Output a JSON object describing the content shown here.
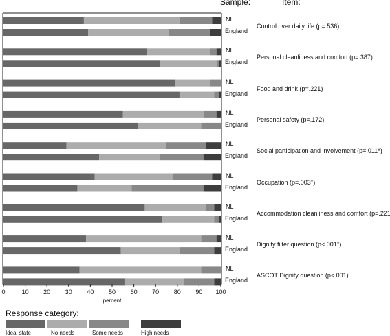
{
  "chart_data": {
    "type": "bar",
    "orientation": "horizontal",
    "stacked": true,
    "header_sample": "Sample:",
    "header_item": "Item:",
    "xlabel": "percent",
    "xlim": [
      0,
      100
    ],
    "xticks": [
      "0",
      "10",
      "20",
      "30",
      "40",
      "50",
      "60",
      "70",
      "80",
      "90",
      "100"
    ],
    "legend_title": "Response category:",
    "categories_legend": [
      "Ideal state",
      "No needs",
      "Some needs",
      "High needs"
    ],
    "colors": [
      "#676767",
      "#acacac",
      "#888888",
      "#3d3d3d"
    ],
    "items": [
      {
        "label": "Control over daily life (p=.536)",
        "rows": [
          {
            "sample": "NL",
            "values": [
              37,
              44,
              15,
              4
            ]
          },
          {
            "sample": "England",
            "values": [
              39,
              37,
              19,
              5
            ]
          }
        ]
      },
      {
        "label": "Personal cleanliness and comfort (p=.387)",
        "rows": [
          {
            "sample": "NL",
            "values": [
              66,
              29,
              3,
              2
            ]
          },
          {
            "sample": "England",
            "values": [
              72,
              26,
              1,
              1
            ]
          }
        ]
      },
      {
        "label": "Food and drink (p=.221)",
        "rows": [
          {
            "sample": "NL",
            "values": [
              79,
              16,
              5,
              0
            ]
          },
          {
            "sample": "England",
            "values": [
              81,
              16,
              2,
              1
            ]
          }
        ]
      },
      {
        "label": "Personal safety (p=.172)",
        "rows": [
          {
            "sample": "NL",
            "values": [
              55,
              37,
              6,
              2
            ]
          },
          {
            "sample": "England",
            "values": [
              62,
              29,
              9,
              0
            ]
          }
        ]
      },
      {
        "label": "Social participation and involvement (p=.011*)",
        "rows": [
          {
            "sample": "NL",
            "values": [
              29,
              46,
              18,
              7
            ]
          },
          {
            "sample": "England",
            "values": [
              44,
              28,
              20,
              8
            ]
          }
        ]
      },
      {
        "label": "Occupation (p=.003*)",
        "rows": [
          {
            "sample": "NL",
            "values": [
              42,
              36,
              18,
              4
            ]
          },
          {
            "sample": "England",
            "values": [
              34,
              25,
              33,
              8
            ]
          }
        ]
      },
      {
        "label": "Accommodation cleanliness and comfort (p=.221)",
        "rows": [
          {
            "sample": "NL",
            "values": [
              65,
              28,
              4,
              3
            ]
          },
          {
            "sample": "England",
            "values": [
              73,
              24,
              2,
              1
            ]
          }
        ]
      },
      {
        "label": "Dignity filter question (p<.001*)",
        "rows": [
          {
            "sample": "NL",
            "values": [
              38,
              53,
              7,
              2
            ]
          },
          {
            "sample": "England",
            "values": [
              54,
              27,
              16,
              3
            ]
          }
        ]
      },
      {
        "label": "ASCOT Dignity question (p<.001)",
        "rows": [
          {
            "sample": "NL",
            "values": [
              35,
              56,
              9,
              0
            ]
          },
          {
            "sample": "England",
            "values": [
              56,
              27,
              14,
              3
            ]
          }
        ]
      }
    ]
  }
}
